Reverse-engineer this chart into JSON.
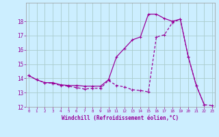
{
  "xlabel": "Windchill (Refroidissement éolien,°C)",
  "background_color": "#cceeff",
  "grid_color": "#aacccc",
  "line_color": "#990099",
  "hours": [
    0,
    1,
    2,
    3,
    4,
    5,
    6,
    7,
    8,
    9,
    10,
    11,
    12,
    13,
    14,
    15,
    16,
    17,
    18,
    19,
    20,
    21,
    22,
    23
  ],
  "temp": [
    14.2,
    13.9,
    13.7,
    13.7,
    13.55,
    13.5,
    13.5,
    13.45,
    13.45,
    13.45,
    13.9,
    15.5,
    16.1,
    16.7,
    16.9,
    18.5,
    18.5,
    18.2,
    18.0,
    18.15,
    15.5,
    13.5,
    12.15,
    null
  ],
  "windchill": [
    14.2,
    13.9,
    13.7,
    13.65,
    13.5,
    13.45,
    13.35,
    13.25,
    13.3,
    13.3,
    13.85,
    13.5,
    13.4,
    13.2,
    13.15,
    13.05,
    16.9,
    17.05,
    17.9,
    18.15,
    15.5,
    13.5,
    12.15,
    12.1
  ],
  "ylim": [
    12,
    19
  ],
  "yticks": [
    12,
    13,
    14,
    15,
    16,
    17,
    18
  ],
  "xlim": [
    0,
    23
  ]
}
